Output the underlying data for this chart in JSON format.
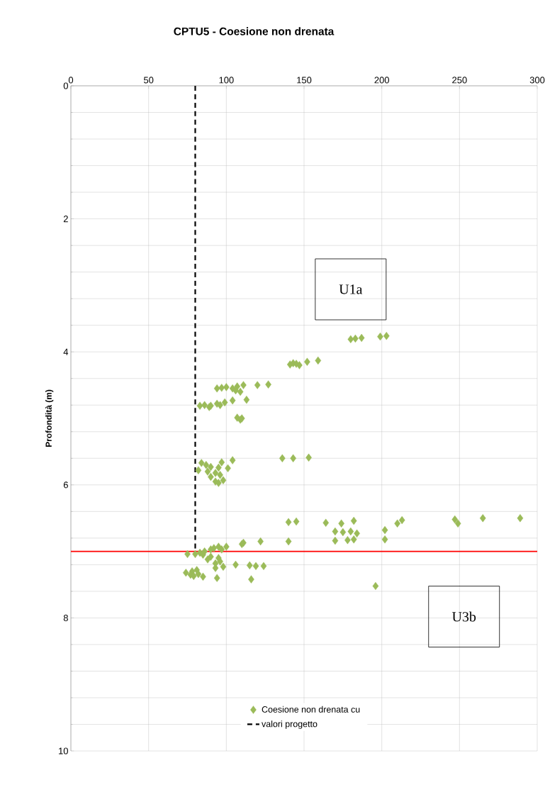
{
  "chart_data": {
    "type": "scatter",
    "title": "CPTU5 - Coesione non drenata",
    "ylabel": "Profondità (m)",
    "xlim": [
      0,
      300
    ],
    "xticks": [
      0,
      50,
      100,
      150,
      200,
      250,
      300
    ],
    "ylim": [
      10,
      0
    ],
    "yticks": [
      0,
      2,
      4,
      6,
      8,
      10
    ],
    "grid": true,
    "legend": "bottom",
    "marker": "diamond",
    "annotations": [
      "U1a",
      "U3b"
    ],
    "ref_lines": [
      {
        "axis": "y",
        "value": 7,
        "color": "#ff0000"
      }
    ],
    "series": [
      {
        "name": "Coesione non drenata cu",
        "color": "#9bbb59",
        "x": [
          180,
          183,
          187,
          199,
          203,
          141,
          143,
          145,
          147,
          152,
          159,
          120,
          127,
          111,
          107,
          104,
          100,
          97,
          94,
          109,
          106,
          113,
          104,
          99,
          94,
          96,
          90,
          86,
          83,
          89,
          107,
          110,
          109,
          136,
          143,
          153,
          104,
          97,
          84,
          87,
          90,
          95,
          101,
          82,
          88,
          93,
          96,
          90,
          98,
          93,
          95,
          289,
          265,
          247,
          249,
          213,
          210,
          182,
          174,
          164,
          145,
          140,
          170,
          175,
          180,
          184,
          202,
          170,
          178,
          182,
          202,
          140,
          122,
          111,
          110,
          100,
          95,
          92,
          90,
          97,
          86,
          83,
          80,
          75,
          85,
          90,
          95,
          88,
          96,
          93,
          106,
          115,
          119,
          124,
          98,
          93,
          78,
          81,
          74,
          77,
          82,
          79,
          85,
          94,
          116,
          196
        ],
        "values": [
          3.81,
          3.8,
          3.79,
          3.77,
          3.76,
          4.19,
          4.17,
          4.18,
          4.2,
          4.15,
          4.13,
          4.5,
          4.49,
          4.5,
          4.52,
          4.55,
          4.53,
          4.54,
          4.55,
          4.6,
          4.58,
          4.72,
          4.73,
          4.76,
          4.78,
          4.8,
          4.81,
          4.8,
          4.81,
          4.83,
          4.99,
          5.0,
          5.02,
          5.6,
          5.6,
          5.59,
          5.63,
          5.66,
          5.67,
          5.7,
          5.73,
          5.74,
          5.75,
          5.78,
          5.8,
          5.82,
          5.85,
          5.88,
          5.93,
          5.95,
          5.97,
          6.5,
          6.5,
          6.52,
          6.58,
          6.53,
          6.58,
          6.54,
          6.58,
          6.57,
          6.55,
          6.56,
          6.7,
          6.71,
          6.7,
          6.73,
          6.68,
          6.84,
          6.83,
          6.82,
          6.82,
          6.85,
          6.85,
          6.87,
          6.89,
          6.93,
          6.93,
          6.95,
          6.97,
          6.97,
          7.0,
          7.02,
          7.04,
          7.04,
          7.05,
          7.08,
          7.1,
          7.12,
          7.15,
          7.18,
          7.2,
          7.21,
          7.22,
          7.22,
          7.23,
          7.25,
          7.3,
          7.28,
          7.32,
          7.35,
          7.34,
          7.37,
          7.38,
          7.4,
          7.42,
          7.52
        ]
      },
      {
        "name": "valori progetto",
        "color": "#000000",
        "type": "line",
        "line_style": "dashed",
        "marker": "none",
        "x": [
          80,
          80
        ],
        "values": [
          0,
          7
        ]
      }
    ]
  }
}
